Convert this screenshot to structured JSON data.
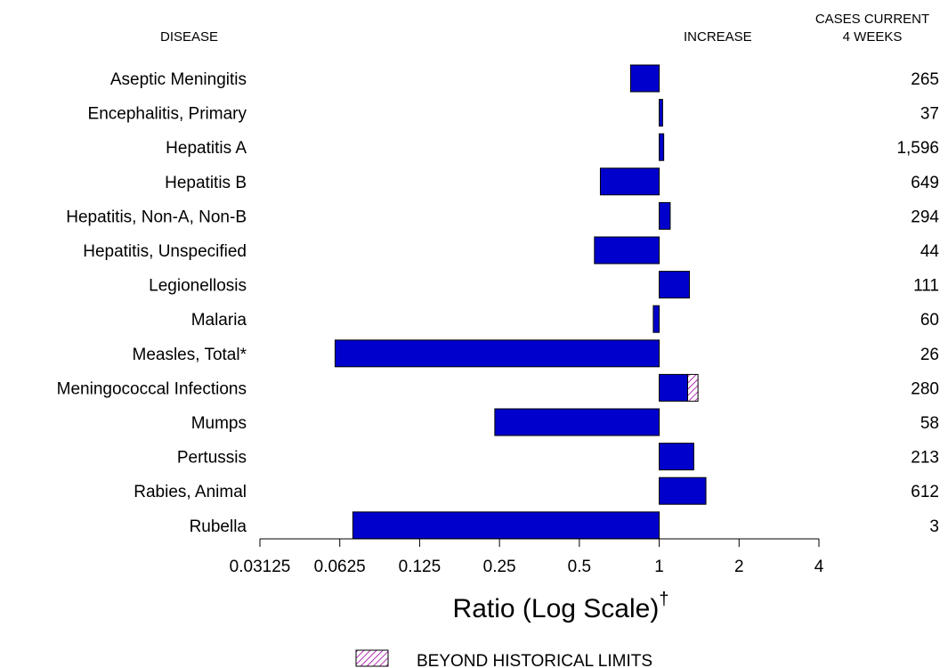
{
  "chart_data": {
    "type": "bar",
    "orientation": "horizontal",
    "x_scale": "log2",
    "xlim": [
      0.03125,
      4
    ],
    "xticks": [
      "0.03125",
      "0.0625",
      "0.125",
      "0.25",
      "0.5",
      "1",
      "2",
      "4"
    ],
    "baseline": 1,
    "header_disease": "DISEASE",
    "header_increase": "INCREASE",
    "header_cases_line1": "CASES CURRENT",
    "header_cases_line2": "4 WEEKS",
    "xlabel_main": "Ratio (Log Scale)",
    "xlabel_sup": "†",
    "legend_label": "BEYOND HISTORICAL LIMITS",
    "bar_color": "#0000cc",
    "categories": [
      "Aseptic Meningitis",
      "Encephalitis, Primary",
      "Hepatitis A",
      "Hepatitis B",
      "Hepatitis, Non-A, Non-B",
      "Hepatitis, Unspecified",
      "Legionellosis",
      "Malaria",
      "Measles, Total*",
      "Meningococcal Infections",
      "Mumps",
      "Pertussis",
      "Rabies, Animal",
      "Rubella"
    ],
    "values": [
      0.78,
      1.03,
      1.04,
      0.6,
      1.1,
      0.57,
      1.3,
      0.95,
      0.06,
      1.4,
      0.24,
      1.35,
      1.5,
      0.07
    ],
    "beyond_limits_from": [
      null,
      null,
      null,
      null,
      null,
      null,
      null,
      null,
      null,
      1.28,
      null,
      null,
      null,
      null
    ],
    "cases": [
      "265",
      "37",
      "1,596",
      "649",
      "294",
      "44",
      "111",
      "60",
      "26",
      "280",
      "58",
      "213",
      "612",
      "3"
    ]
  }
}
